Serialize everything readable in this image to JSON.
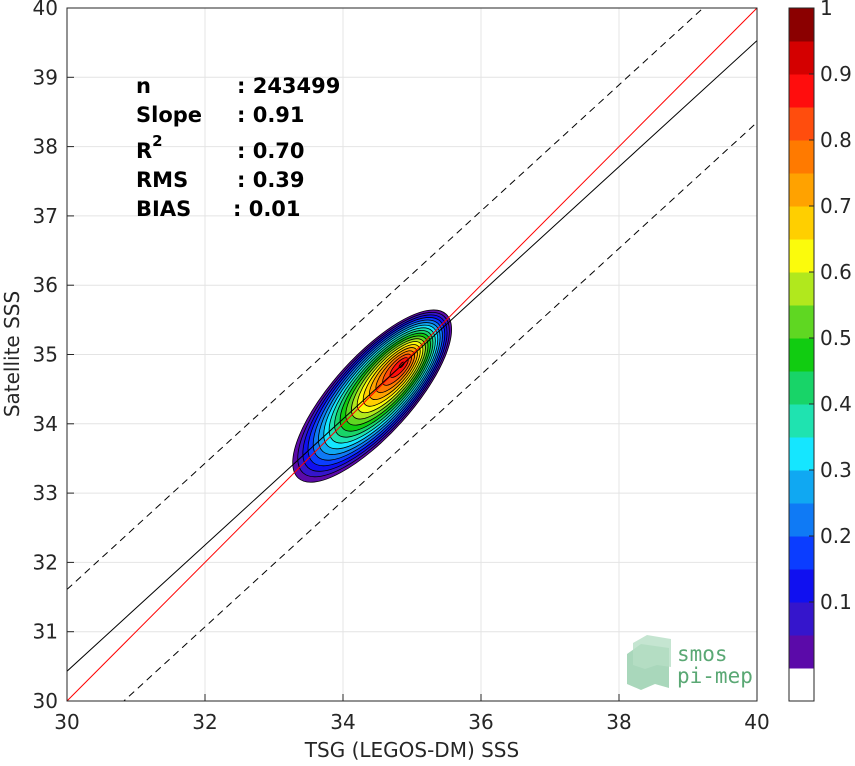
{
  "chart_data": {
    "type": "contour",
    "xlabel": "TSG (LEGOS-DM) SSS",
    "ylabel": "Satellite SSS",
    "xlim": [
      30,
      40
    ],
    "ylim": [
      30,
      40
    ],
    "xticks": [
      "30",
      "32",
      "34",
      "36",
      "38",
      "40"
    ],
    "yticks": [
      "30",
      "31",
      "32",
      "33",
      "34",
      "35",
      "36",
      "37",
      "38",
      "39",
      "40"
    ],
    "grid": true,
    "stats": [
      {
        "label": "n",
        "value": ": 243499"
      },
      {
        "label": "Slope",
        "value": ": 0.91"
      },
      {
        "label": "R",
        "sup": "2",
        "value": ": 0.70"
      },
      {
        "label": "RMS",
        "value": ": 0.39"
      },
      {
        "label": "BIAS",
        "value": ": 0.01"
      }
    ],
    "lines": {
      "identity": {
        "slope": 1,
        "intercept": 0,
        "color": "#ff0000"
      },
      "fit": {
        "slope": 0.91,
        "intercept": 3.13,
        "color": "#000000"
      },
      "upper_band": {
        "slope": 0.91,
        "intercept": 4.31,
        "color": "#000000",
        "style": "dashed"
      },
      "lower_band": {
        "slope": 0.91,
        "intercept": 1.95,
        "color": "#000000",
        "style": "dashed"
      }
    },
    "density": {
      "center": [
        34.85,
        34.85
      ],
      "tail": [
        33.9,
        33.85
      ],
      "description_levels": [
        0.05,
        0.1,
        0.15,
        0.2,
        0.25,
        0.3,
        0.35,
        0.4,
        0.45,
        0.5,
        0.55,
        0.6,
        0.65,
        0.7,
        0.75,
        0.8,
        0.85,
        0.9,
        0.95
      ]
    },
    "colorbar": {
      "ticks": [
        "0.1",
        "0.2",
        "0.3",
        "0.4",
        "0.5",
        "0.6",
        "0.7",
        "0.8",
        "0.9",
        "1"
      ],
      "tick_values": [
        0.1,
        0.2,
        0.3,
        0.4,
        0.5,
        0.6,
        0.7,
        0.8,
        0.9,
        1.0
      ],
      "colors": [
        "#ffffff",
        "#5b0aa9",
        "#3515cc",
        "#1010f0",
        "#0b3dff",
        "#0f7af5",
        "#10a8f2",
        "#15e6ff",
        "#1fe3b0",
        "#18d468",
        "#11cc11",
        "#5fd722",
        "#b1e81d",
        "#fbfb0c",
        "#ffcf00",
        "#ffa200",
        "#ff7a00",
        "#ff4d0d",
        "#ff0d0d",
        "#d40000",
        "#8b0000"
      ]
    }
  },
  "logo": {
    "line1": "smos",
    "line2": "pi-mep"
  }
}
